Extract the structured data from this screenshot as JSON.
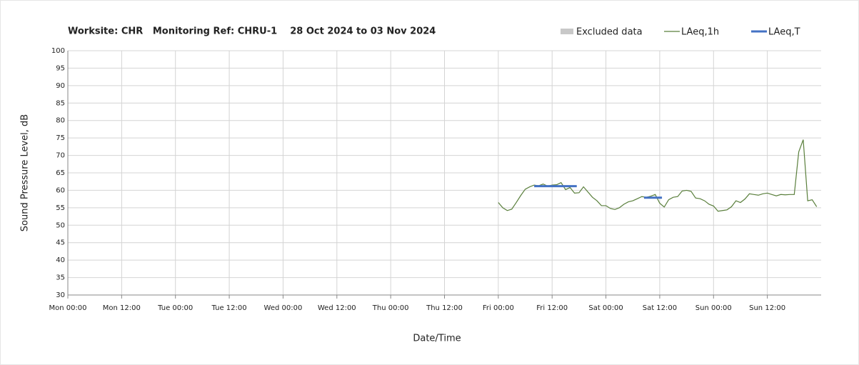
{
  "chart_data": {
    "type": "line",
    "title": "Worksite: CHR   Monitoring Ref: CHRU-1    28 Oct 2024 to 03 Nov 2024",
    "y_label": "Sound Pressure Level, dB",
    "x_label": "Date/Time",
    "xlim": [
      0,
      168
    ],
    "xticks": [
      {
        "value": 0,
        "label": "Mon 00:00"
      },
      {
        "value": 12,
        "label": "Mon 12:00"
      },
      {
        "value": 24,
        "label": "Tue 00:00"
      },
      {
        "value": 36,
        "label": "Tue 12:00"
      },
      {
        "value": 48,
        "label": "Wed 00:00"
      },
      {
        "value": 60,
        "label": "Wed 12:00"
      },
      {
        "value": 72,
        "label": "Thu 00:00"
      },
      {
        "value": 84,
        "label": "Thu 12:00"
      },
      {
        "value": 96,
        "label": "Fri 00:00"
      },
      {
        "value": 108,
        "label": "Fri 12:00"
      },
      {
        "value": 120,
        "label": "Sat 00:00"
      },
      {
        "value": 132,
        "label": "Sat 12:00"
      },
      {
        "value": 144,
        "label": "Sun 00:00"
      },
      {
        "value": 156,
        "label": "Sun 12:00"
      }
    ],
    "ylim": [
      30,
      100
    ],
    "yticks": [
      30,
      35,
      40,
      45,
      50,
      55,
      60,
      65,
      70,
      75,
      80,
      85,
      90,
      95,
      100
    ],
    "grid": true,
    "series": [
      {
        "name": "Excluded data",
        "color": "#c8c8c8",
        "style": "band",
        "x": [],
        "values": []
      },
      {
        "name": "LAeq,1h",
        "color": "#5a7f3c",
        "style": "thin",
        "x": [
          96,
          97,
          98,
          99,
          100,
          101,
          102,
          103,
          104,
          105,
          106,
          107,
          108,
          109,
          110,
          111,
          112,
          113,
          114,
          115,
          116,
          117,
          118,
          119,
          120,
          121,
          122,
          123,
          124,
          125,
          126,
          127,
          128,
          129,
          130,
          131,
          132,
          133,
          134,
          135,
          136,
          137,
          138,
          139,
          140,
          141,
          142,
          143,
          144,
          145,
          146,
          147,
          148,
          149,
          150,
          151,
          152,
          153,
          154,
          155,
          156,
          157,
          158,
          159,
          160,
          161,
          162,
          163,
          164,
          165,
          166,
          167
        ],
        "values": [
          56.5,
          55,
          54.2,
          54.6,
          56.5,
          58.5,
          60.3,
          61,
          61.5,
          61.3,
          61.8,
          61.2,
          61.5,
          61.6,
          62.2,
          60.2,
          60.8,
          59.2,
          59.3,
          61,
          59.5,
          58,
          57,
          55.6,
          55.6,
          54.8,
          54.5,
          55,
          56,
          56.7,
          57,
          57.6,
          58.2,
          58,
          58.3,
          58.8,
          56.3,
          55.2,
          57.3,
          58,
          58.2,
          59.8,
          60,
          59.7,
          57.8,
          57.6,
          57,
          56,
          55.5,
          54,
          54.2,
          54.4,
          55.3,
          57,
          56.5,
          57.5,
          59,
          58.8,
          58.6,
          59,
          59.2,
          58.8,
          58.4,
          58.8,
          58.7,
          58.8,
          58.8,
          71,
          74.5,
          57,
          57.3,
          55.3
        ]
      },
      {
        "name": "LAeq,T",
        "color": "#4472c4",
        "style": "thick",
        "x": [
          104,
          113.5,
          113.5,
          128.5,
          132.5
        ],
        "values": [
          61.2,
          61.2,
          null,
          57.9,
          57.9
        ]
      }
    ]
  }
}
